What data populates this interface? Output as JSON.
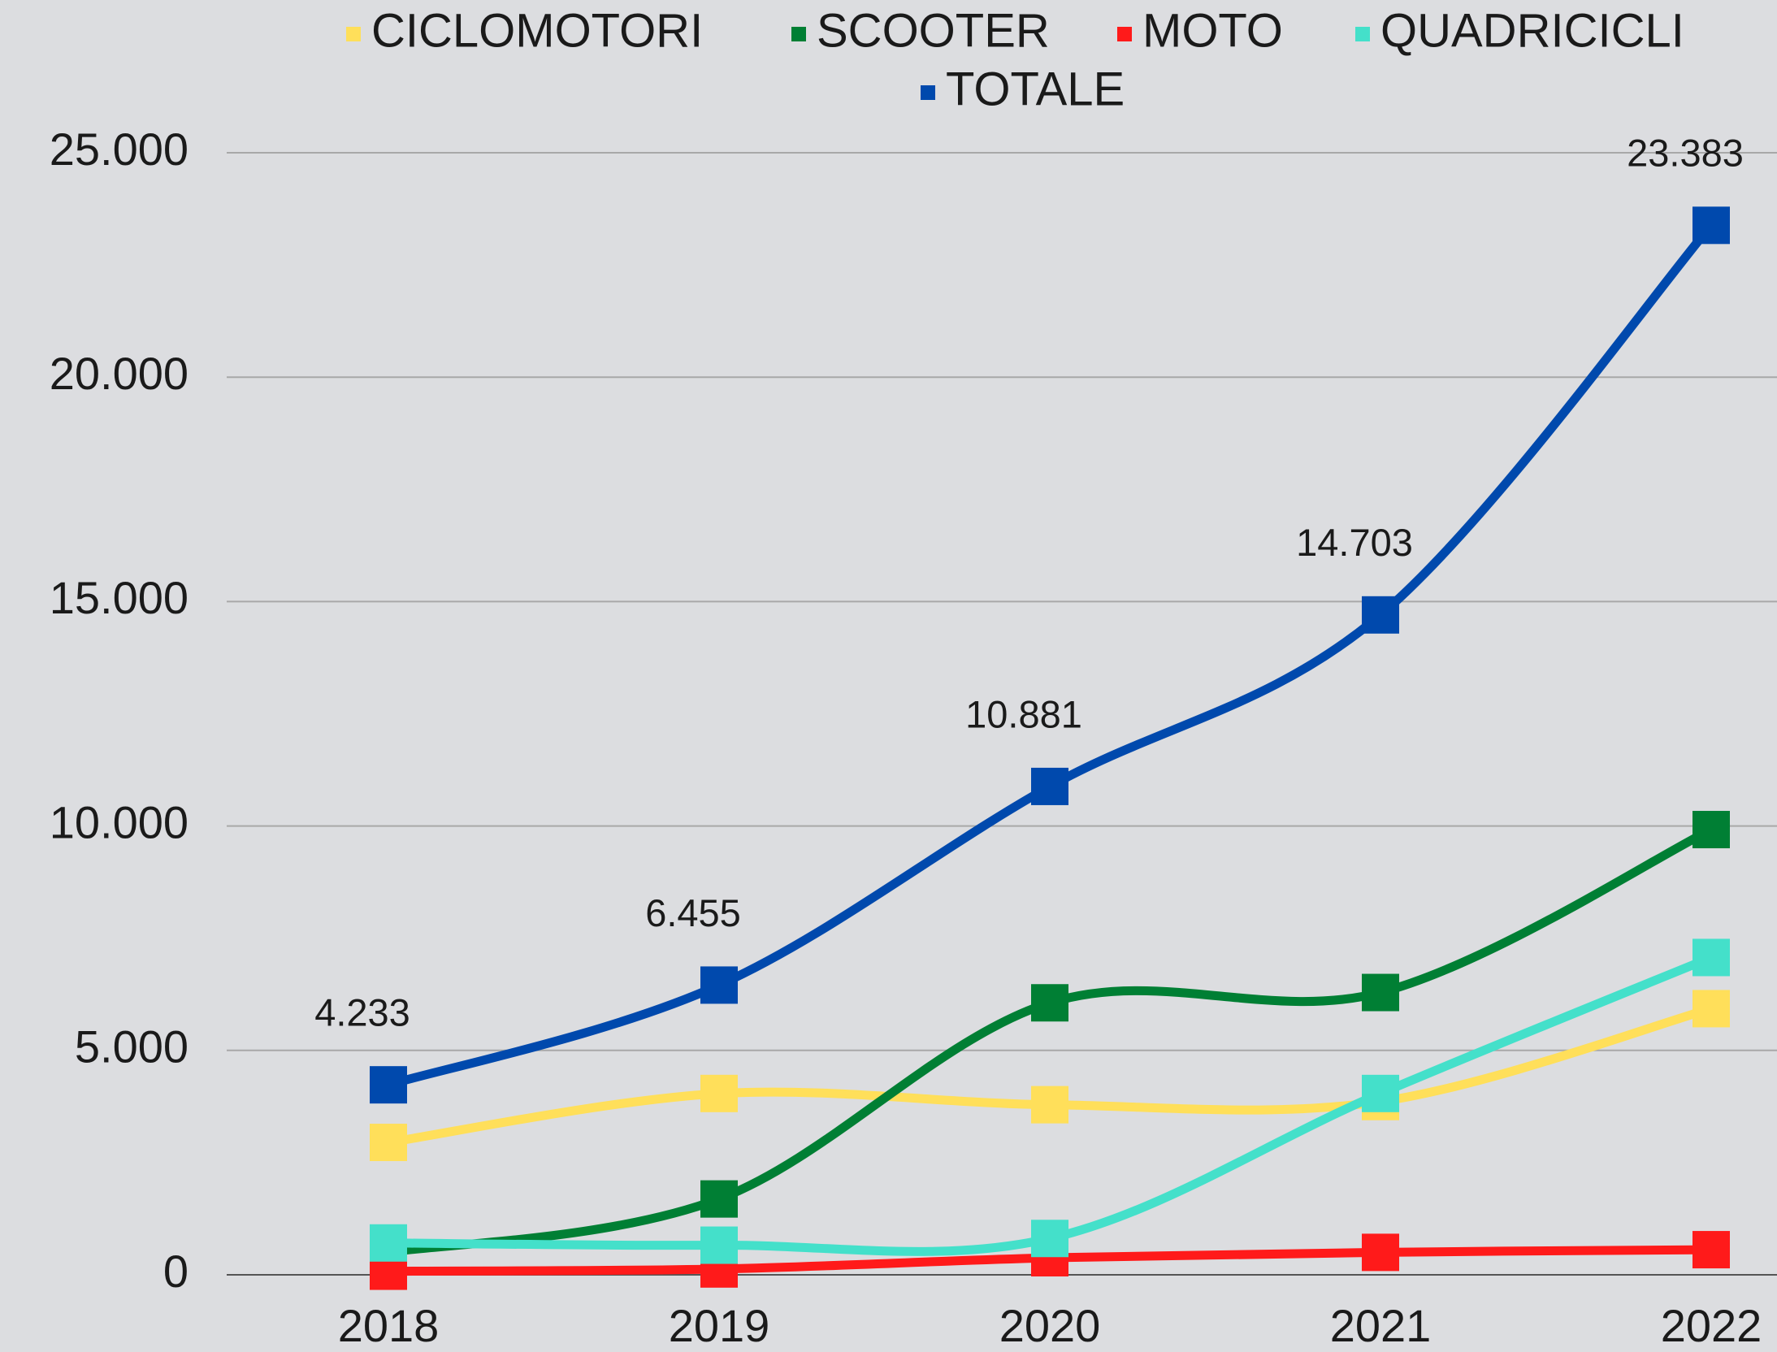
{
  "chart_data": {
    "type": "line",
    "categories": [
      "2018",
      "2019",
      "2020",
      "2021",
      "2022"
    ],
    "series": [
      {
        "name": "CICLOMOTORI",
        "color": "#ffdf5a",
        "values": [
          2950,
          4040,
          3790,
          3860,
          5930
        ]
      },
      {
        "name": "SCOOTER",
        "color": "#007f34",
        "values": [
          500,
          1690,
          6060,
          6290,
          9920
        ]
      },
      {
        "name": "MOTO",
        "color": "#ff1a1a",
        "values": [
          80,
          130,
          380,
          500,
          560
        ]
      },
      {
        "name": "QUADRICICLI",
        "color": "#44e0ca",
        "values": [
          710,
          660,
          810,
          4040,
          7070
        ]
      },
      {
        "name": "TOTALE",
        "color": "#0049ad",
        "values": [
          4233,
          6455,
          10881,
          14703,
          23383
        ],
        "value_labels": [
          "4.233",
          "6.455",
          "10.881",
          "14.703",
          "23.383"
        ]
      }
    ],
    "ylim": [
      0,
      25000
    ],
    "yticks": [
      0,
      {
        "value": 5000,
        "label": "5.000"
      },
      {
        "value": 10000,
        "label": "10.000"
      },
      {
        "value": 15000,
        "label": "15.000"
      },
      {
        "value": 20000,
        "label": "20.000"
      },
      {
        "value": 25000,
        "label": "25.000"
      }
    ],
    "grid": true,
    "smooth": true,
    "legend": "top"
  }
}
